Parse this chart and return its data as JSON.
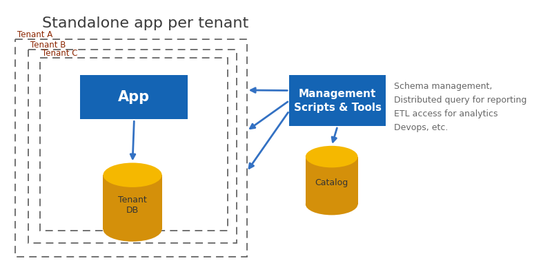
{
  "title": "Standalone app per tenant",
  "title_fontsize": 16,
  "title_color": "#3a3a3a",
  "background_color": "#ffffff",
  "tenant_labels": [
    "Tenant C",
    "Tenant B",
    "Tenant A"
  ],
  "tenant_label_color": "#8B2500",
  "tenant_label_fontsize": 8.5,
  "box_dash_color": "#666666",
  "app_box_color": "#1464b4",
  "app_label": "App",
  "app_label_color": "#ffffff",
  "app_label_fontsize": 15,
  "mgmt_box_color": "#1464b4",
  "mgmt_label": "Management\nScripts & Tools",
  "mgmt_label_color": "#ffffff",
  "mgmt_label_fontsize": 11,
  "side_text": "Schema management,\nDistributed query for reporting\nETL access for analytics\nDevops, etc.",
  "side_text_fontsize": 9,
  "side_text_color": "#666666",
  "arrow_color": "#3371c3",
  "arrow_lw": 2.0,
  "db_color_top": "#f5b800",
  "db_color_body": "#d4900a",
  "db_label_fontsize": 9,
  "db_label_color": "#333333"
}
